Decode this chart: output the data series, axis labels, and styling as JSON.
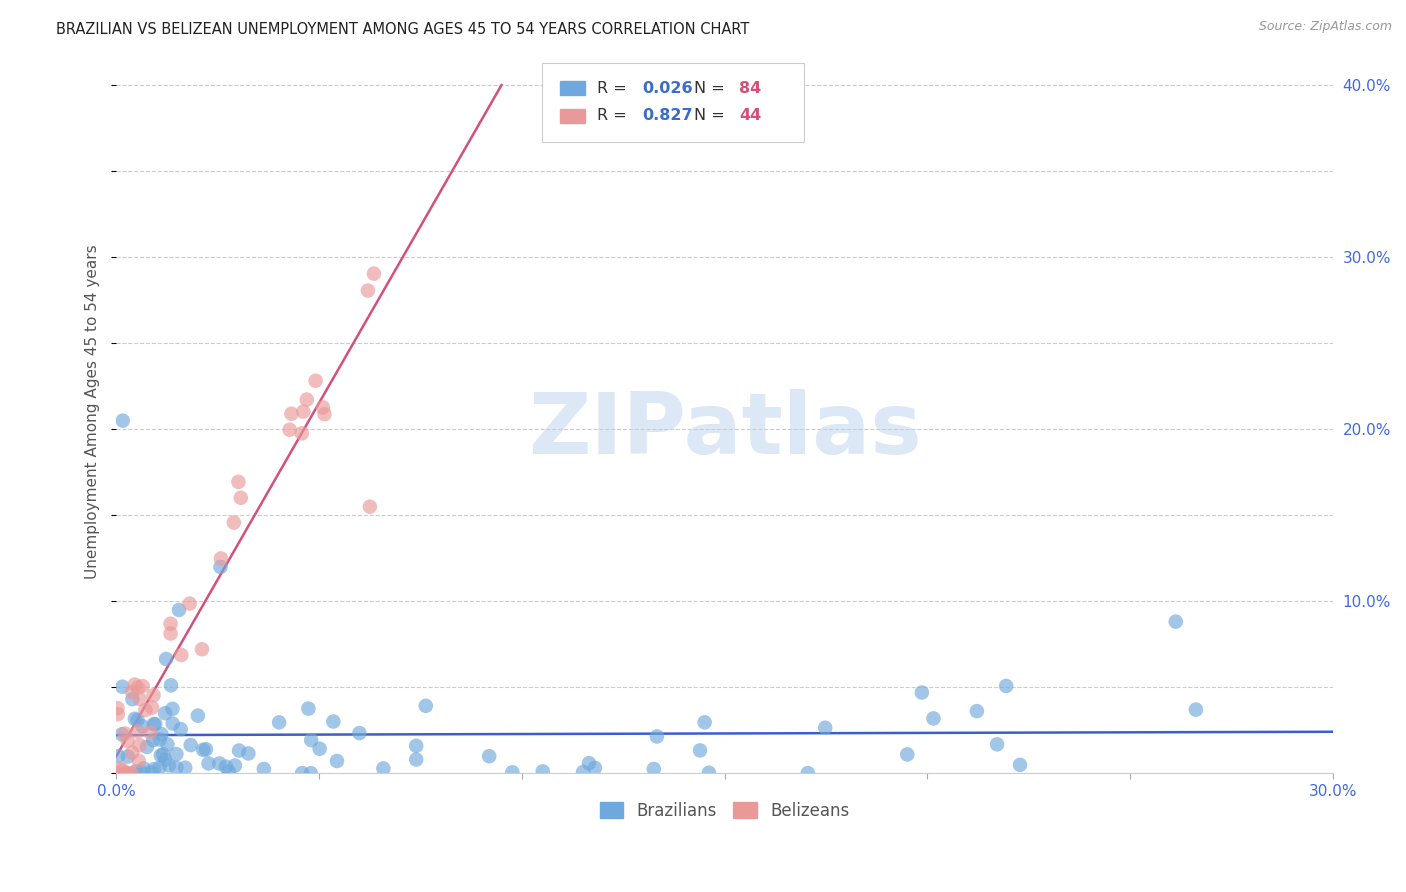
{
  "title": "BRAZILIAN VS BELIZEAN UNEMPLOYMENT AMONG AGES 45 TO 54 YEARS CORRELATION CHART",
  "source": "Source: ZipAtlas.com",
  "ylabel": "Unemployment Among Ages 45 to 54 years",
  "xlim": [
    0.0,
    0.3
  ],
  "ylim": [
    0.0,
    0.42
  ],
  "xticks": [
    0.0,
    0.05,
    0.1,
    0.15,
    0.2,
    0.25,
    0.3
  ],
  "xticklabels": [
    "0.0%",
    "",
    "",
    "",
    "",
    "",
    "30.0%"
  ],
  "yticks": [
    0.0,
    0.1,
    0.2,
    0.3,
    0.4
  ],
  "yticklabels": [
    "",
    "10.0%",
    "20.0%",
    "30.0%",
    "40.0%"
  ],
  "grid_color": "#cccccc",
  "background_color": "#ffffff",
  "brazil_color": "#6fa8dc",
  "belize_color": "#ea9999",
  "brazil_line_color": "#3a5fcd",
  "belize_line_color": "#d4507a",
  "brazil_R": 0.026,
  "brazil_N": 84,
  "belize_R": 0.827,
  "belize_N": 44,
  "watermark_color": "#dce8f5",
  "tick_color": "#4169E1",
  "title_color": "#222222",
  "ylabel_color": "#555555"
}
